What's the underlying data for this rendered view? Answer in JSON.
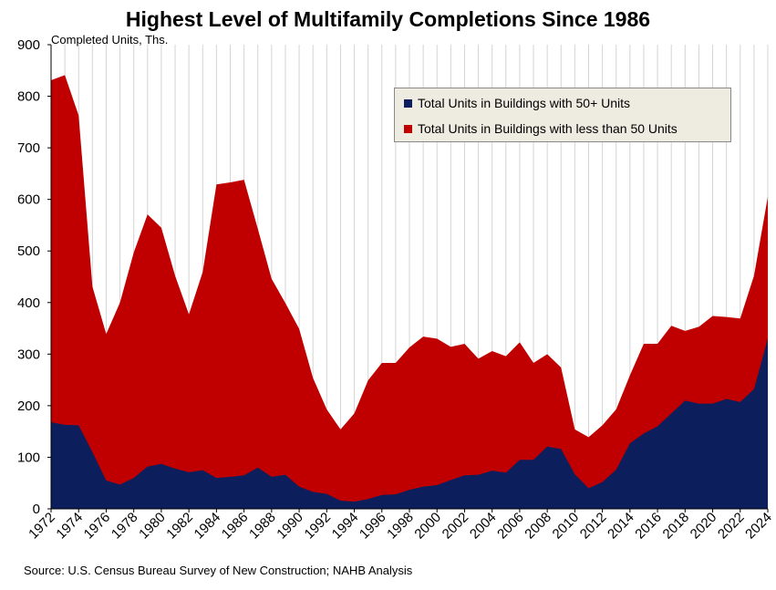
{
  "chart_data": {
    "type": "area",
    "stacked": true,
    "title": "Highest Level of Multifamily Completions Since 1986",
    "ylabel": "Completed Units, Ths.",
    "ylim": [
      0,
      900
    ],
    "yticks": [
      0,
      100,
      200,
      300,
      400,
      500,
      600,
      700,
      800,
      900
    ],
    "xticks": [
      "1972",
      "1974",
      "1976",
      "1978",
      "1980",
      "1982",
      "1984",
      "1986",
      "1988",
      "1990",
      "1992",
      "1994",
      "1996",
      "1998",
      "2000",
      "2002",
      "2004",
      "2006",
      "2008",
      "2010",
      "2012",
      "2014",
      "2016",
      "2018",
      "2020",
      "2022",
      "2024"
    ],
    "x": [
      1972,
      1973,
      1974,
      1975,
      1976,
      1977,
      1978,
      1979,
      1980,
      1981,
      1982,
      1983,
      1984,
      1985,
      1986,
      1987,
      1988,
      1989,
      1990,
      1991,
      1992,
      1993,
      1994,
      1995,
      1996,
      1997,
      1998,
      1999,
      2000,
      2001,
      2002,
      2003,
      2004,
      2005,
      2006,
      2007,
      2008,
      2009,
      2010,
      2011,
      2012,
      2013,
      2014,
      2015,
      2016,
      2017,
      2018,
      2019,
      2020,
      2021,
      2022,
      2023,
      2024
    ],
    "series": [
      {
        "name": "Total Units in Buildings with 50+ Units",
        "color": "#0c1f5c",
        "values": [
          168,
          163,
          162,
          110,
          55,
          47,
          60,
          82,
          87,
          78,
          71,
          75,
          60,
          62,
          65,
          80,
          62,
          66,
          43,
          33,
          29,
          16,
          14,
          19,
          27,
          28,
          37,
          43,
          46,
          56,
          65,
          66,
          74,
          70,
          95,
          95,
          121,
          116,
          67,
          40,
          52,
          76,
          127,
          146,
          160,
          185,
          210,
          204,
          204,
          213,
          207,
          232,
          330
        ]
      },
      {
        "name": "Total Units in Buildings with less than 50 Units",
        "color": "#c00000",
        "values": [
          663,
          678,
          601,
          321,
          284,
          353,
          437,
          489,
          458,
          374,
          306,
          384,
          569,
          571,
          573,
          463,
          384,
          333,
          306,
          221,
          164,
          138,
          171,
          230,
          256,
          255,
          276,
          291,
          284,
          258,
          255,
          225,
          232,
          226,
          228,
          188,
          179,
          158,
          87,
          99,
          110,
          117,
          132,
          174,
          160,
          170,
          135,
          149,
          170,
          159,
          162,
          220,
          275
        ]
      }
    ],
    "legend_position": "top-right",
    "grid": true,
    "source": "Source: U.S. Census Bureau Survey of New Construction; NAHB Analysis"
  }
}
